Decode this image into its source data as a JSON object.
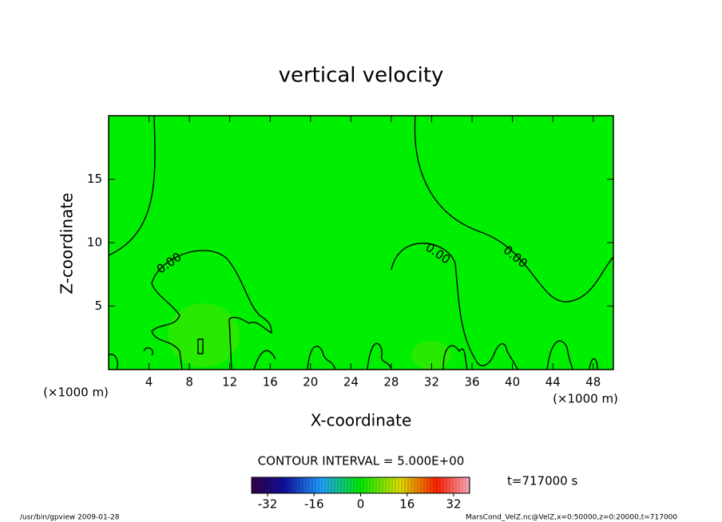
{
  "chart_data": {
    "type": "contour",
    "title": "vertical velocity",
    "xlabel": "X-coordinate",
    "ylabel": "Z-coordinate",
    "x_unit": "(×1000 m)",
    "y_unit": "(×1000 m)",
    "xlim": [
      0,
      50
    ],
    "ylim": [
      0,
      20
    ],
    "xticks": [
      4,
      8,
      12,
      16,
      20,
      24,
      28,
      32,
      36,
      40,
      44,
      48
    ],
    "yticks": [
      5,
      10,
      15
    ],
    "field_color": "#00ee00",
    "line_color": "#000000",
    "contour_levels": [
      {
        "value": 0,
        "label": "0.00"
      }
    ],
    "contour_interval": "CONTOUR INTERVAL = 5.000E+00",
    "colorbar": {
      "clim": [
        -37.5,
        37.5
      ],
      "ticks": [
        -32,
        -16,
        0,
        16,
        32
      ]
    },
    "time": "t=717000 s",
    "footer_left": "/usr/bin/gpview  2009-01-28",
    "footer_right": "MarsCond_VelZ.nc@VelZ,x=0:50000,z=0:20000,t=717000"
  }
}
